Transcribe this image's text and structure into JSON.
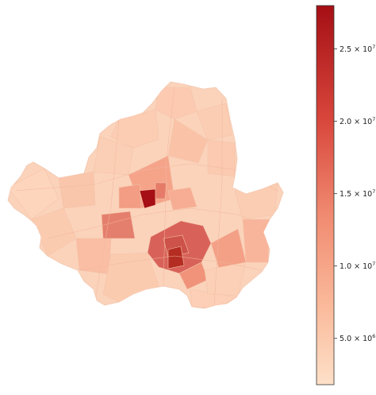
{
  "colors": {
    "cmap_low": "#fde0c8",
    "cmap_mid": "#e8806c",
    "cmap_high": "#a50f15",
    "border": "#f3c6ad",
    "outline": "#333333"
  },
  "colorbar": {
    "cmap": "Reds-like",
    "min": 1800000,
    "max": 28000000,
    "ticks": [
      {
        "value": 5000000,
        "base": "5.0 × 10",
        "exp": "6"
      },
      {
        "value": 10000000,
        "base": "1.0 × 10",
        "exp": "7"
      },
      {
        "value": 15000000,
        "base": "1.5 × 10",
        "exp": "7"
      },
      {
        "value": 20000000,
        "base": "2.0 × 10",
        "exp": "7"
      },
      {
        "value": 25000000,
        "base": "2.5 × 10",
        "exp": "7"
      }
    ]
  }
}
